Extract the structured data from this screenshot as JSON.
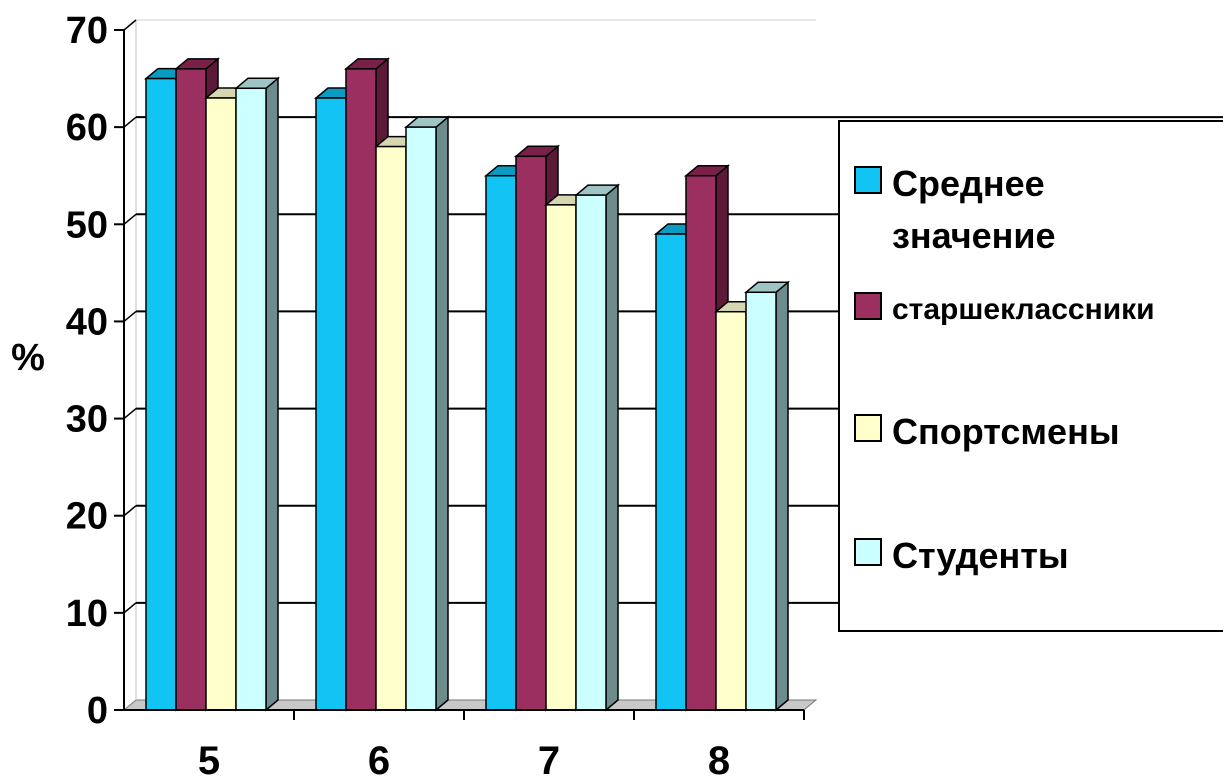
{
  "chart_data": {
    "type": "bar",
    "categories": [
      "5",
      "6",
      "7",
      "8"
    ],
    "series": [
      {
        "name": "Среднее значение",
        "values": [
          65,
          63,
          55,
          49
        ],
        "color": "#12c4f4",
        "side": "#0b86a8",
        "top": "#0a9ac2"
      },
      {
        "name": "старшеклассники",
        "values": [
          66,
          66,
          57,
          55
        ],
        "color": "#9b3060",
        "side": "#5c1a38",
        "top": "#7a2049"
      },
      {
        "name": "Спортсмены",
        "values": [
          63,
          58,
          52,
          41
        ],
        "color": "#ffffcc",
        "side": "#b8b89a",
        "top": "#d6d6b0"
      },
      {
        "name": "Студенты",
        "values": [
          64,
          60,
          53,
          43
        ],
        "color": "#ccffff",
        "side": "#6e8c8c",
        "top": "#9fc4c4"
      }
    ],
    "ylabel": "%",
    "ylim": [
      0,
      70
    ],
    "yticks": [
      "0",
      "10",
      "20",
      "30",
      "40",
      "50",
      "60",
      "70"
    ],
    "grid": true,
    "legend_position": "right"
  },
  "legend": {
    "items": [
      {
        "label": "Среднее значение",
        "color": "#12c4f4"
      },
      {
        "label": "старшеклассники",
        "color": "#9b3060"
      },
      {
        "label": "Спортсмены",
        "color": "#ffffcc"
      },
      {
        "label": "Студенты",
        "color": "#ccffff"
      }
    ]
  }
}
